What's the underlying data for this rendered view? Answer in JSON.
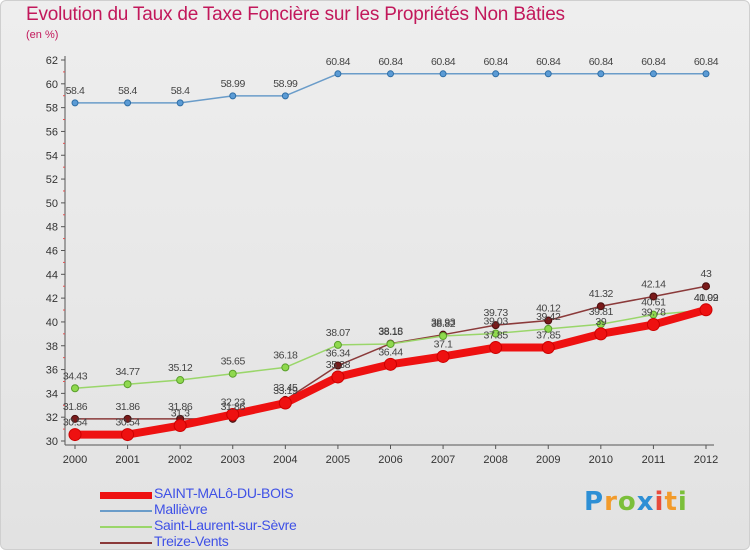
{
  "header": {
    "title": "Evolution du Taux de Taxe Foncière sur les Propriétés Non Bâties",
    "unit": "(en %)"
  },
  "brand": {
    "letters": [
      "P",
      "r",
      "o",
      "x",
      "i",
      "t",
      "i"
    ]
  },
  "chart_data": {
    "type": "line",
    "title": "Evolution du Taux de Taxe Foncière sur les Propriétés Non Bâties",
    "ylabel": "(en %)",
    "xlabel": "",
    "ylim": [
      30,
      62
    ],
    "yticks": [
      30,
      32,
      34,
      36,
      38,
      40,
      42,
      44,
      46,
      48,
      50,
      52,
      54,
      56,
      58,
      60,
      62
    ],
    "grid": false,
    "legend_position": "bottom-left",
    "x": [
      "2000",
      "2001",
      "2002",
      "2003",
      "2004",
      "2005",
      "2006",
      "2007",
      "2008",
      "2009",
      "2010",
      "2011",
      "2012"
    ],
    "series": [
      {
        "name": "SAINT-MALô-DU-BOIS",
        "color": "#ee1111",
        "values": [
          30.54,
          30.54,
          31.3,
          32.23,
          33.19,
          35.38,
          36.44,
          37.1,
          37.85,
          37.85,
          39,
          39.78,
          41.02
        ],
        "labels": [
          "30.54",
          "30.54",
          "31.3",
          "32.23",
          "33.19",
          "35.38",
          "36.44",
          "37.1",
          "37.85",
          "37.85",
          "39",
          "39.78",
          "41.02"
        ]
      },
      {
        "name": "Mallièvre",
        "color": "#6a9cc9",
        "values": [
          58.4,
          58.4,
          58.4,
          58.99,
          58.99,
          60.84,
          60.84,
          60.84,
          60.84,
          60.84,
          60.84,
          60.84,
          60.84
        ],
        "labels": [
          "58.4",
          "58.4",
          "58.4",
          "58.99",
          "58.99",
          "60.84",
          "60.84",
          "60.84",
          "60.84",
          "60.84",
          "60.84",
          "60.84",
          "60.84"
        ]
      },
      {
        "name": "Saint-Laurent-sur-Sèvre",
        "color": "#9ad66a",
        "values": [
          34.43,
          34.77,
          35.12,
          35.65,
          36.18,
          38.07,
          38.15,
          38.82,
          39.03,
          39.42,
          39.81,
          40.61,
          40.99
        ],
        "labels": [
          "34.43",
          "34.77",
          "35.12",
          "35.65",
          "36.18",
          "38.07",
          "38.15",
          "38.82",
          "39.03",
          "39.42",
          "39.81",
          "40.61",
          "40.99"
        ]
      },
      {
        "name": "Treize-Vents",
        "color": "#8b3a3a",
        "values": [
          31.86,
          31.86,
          31.86,
          31.86,
          33.45,
          36.34,
          38.18,
          38.93,
          39.73,
          40.12,
          41.32,
          42.14,
          43
        ],
        "labels": [
          "31.86",
          "31.86",
          "31.86",
          "31.86",
          "33.45",
          "36.34",
          "38.18",
          "38.93",
          "39.73",
          "40.12",
          "41.32",
          "42.14",
          "43"
        ]
      }
    ]
  }
}
